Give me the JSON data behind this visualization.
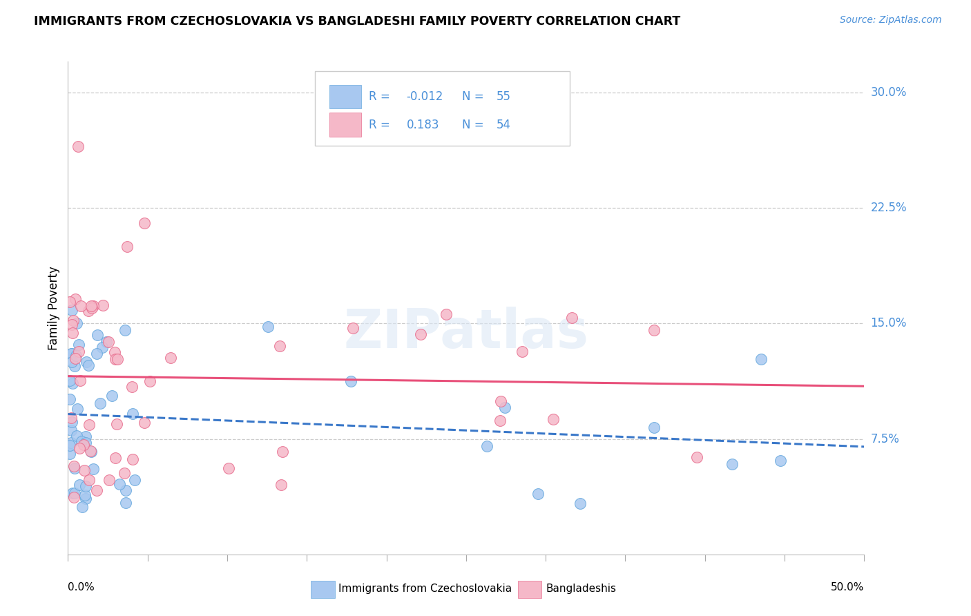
{
  "title": "IMMIGRANTS FROM CZECHOSLOVAKIA VS BANGLADESHI FAMILY POVERTY CORRELATION CHART",
  "source": "Source: ZipAtlas.com",
  "ylabel": "Family Poverty",
  "xlim": [
    0.0,
    0.5
  ],
  "ylim": [
    0.0,
    0.32
  ],
  "blue_R": -0.012,
  "blue_N": 55,
  "pink_R": 0.183,
  "pink_N": 54,
  "blue_color": "#a8c8f0",
  "pink_color": "#f5b8c8",
  "blue_edge_color": "#6aaade",
  "pink_edge_color": "#e87090",
  "blue_line_color": "#3a78c9",
  "pink_line_color": "#e8507a",
  "legend_text_color": "#4a90d9",
  "ytick_vals": [
    0.075,
    0.15,
    0.225,
    0.3
  ],
  "ytick_labels": [
    "7.5%",
    "15.0%",
    "22.5%",
    "30.0%"
  ],
  "watermark": "ZIPatlas"
}
